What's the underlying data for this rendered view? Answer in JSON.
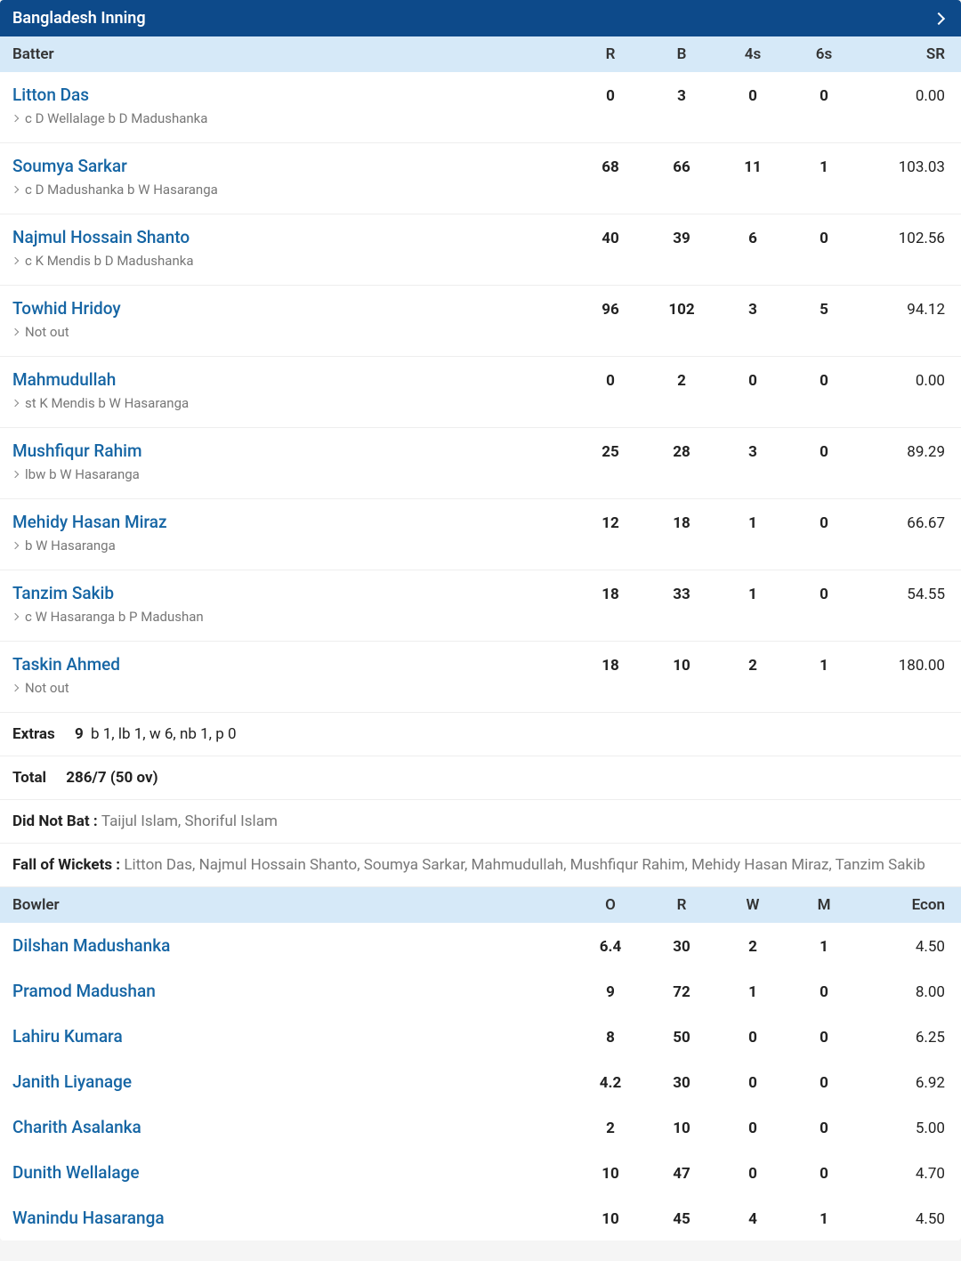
{
  "inning_title": "Bangladesh Inning",
  "batter_header": {
    "name": "Batter",
    "r": "R",
    "b": "B",
    "fours": "4s",
    "sixes": "6s",
    "sr": "SR"
  },
  "batters": [
    {
      "name": "Litton Das",
      "dismissal": "c D Wellalage b D Madushanka",
      "r": "0",
      "b": "3",
      "fours": "0",
      "sixes": "0",
      "sr": "0.00"
    },
    {
      "name": "Soumya Sarkar",
      "dismissal": "c D Madushanka b W Hasaranga",
      "r": "68",
      "b": "66",
      "fours": "11",
      "sixes": "1",
      "sr": "103.03"
    },
    {
      "name": "Najmul Hossain Shanto",
      "dismissal": "c K Mendis b D Madushanka",
      "r": "40",
      "b": "39",
      "fours": "6",
      "sixes": "0",
      "sr": "102.56"
    },
    {
      "name": "Towhid Hridoy",
      "dismissal": "Not out",
      "r": "96",
      "b": "102",
      "fours": "3",
      "sixes": "5",
      "sr": "94.12"
    },
    {
      "name": "Mahmudullah",
      "dismissal": "st K Mendis b W Hasaranga",
      "r": "0",
      "b": "2",
      "fours": "0",
      "sixes": "0",
      "sr": "0.00"
    },
    {
      "name": "Mushfiqur Rahim",
      "dismissal": "lbw b W Hasaranga",
      "r": "25",
      "b": "28",
      "fours": "3",
      "sixes": "0",
      "sr": "89.29"
    },
    {
      "name": "Mehidy Hasan Miraz",
      "dismissal": "b W Hasaranga",
      "r": "12",
      "b": "18",
      "fours": "1",
      "sixes": "0",
      "sr": "66.67"
    },
    {
      "name": "Tanzim Sakib",
      "dismissal": "c W Hasaranga b P Madushan",
      "r": "18",
      "b": "33",
      "fours": "1",
      "sixes": "0",
      "sr": "54.55"
    },
    {
      "name": "Taskin Ahmed",
      "dismissal": "Not out",
      "r": "18",
      "b": "10",
      "fours": "2",
      "sixes": "1",
      "sr": "180.00"
    }
  ],
  "extras": {
    "label": "Extras",
    "value": "9",
    "detail": "b 1, lb 1, w 6, nb 1, p 0"
  },
  "total": {
    "label": "Total",
    "value": "286/7 (50 ov)"
  },
  "dnb": {
    "label": "Did Not Bat : ",
    "value": "Taijul Islam, Shoriful Islam"
  },
  "fow": {
    "label": "Fall of Wickets : ",
    "value": "Litton Das, Najmul Hossain Shanto, Soumya Sarkar, Mahmudullah, Mushfiqur Rahim, Mehidy Hasan Miraz, Tanzim Sakib"
  },
  "bowler_header": {
    "name": "Bowler",
    "o": "O",
    "r": "R",
    "w": "W",
    "m": "M",
    "econ": "Econ"
  },
  "bowlers": [
    {
      "name": "Dilshan Madushanka",
      "o": "6.4",
      "r": "30",
      "w": "2",
      "m": "1",
      "econ": "4.50"
    },
    {
      "name": "Pramod Madushan",
      "o": "9",
      "r": "72",
      "w": "1",
      "m": "0",
      "econ": "8.00"
    },
    {
      "name": "Lahiru Kumara",
      "o": "8",
      "r": "50",
      "w": "0",
      "m": "0",
      "econ": "6.25"
    },
    {
      "name": "Janith Liyanage",
      "o": "4.2",
      "r": "30",
      "w": "0",
      "m": "0",
      "econ": "6.92"
    },
    {
      "name": "Charith Asalanka",
      "o": "2",
      "r": "10",
      "w": "0",
      "m": "0",
      "econ": "5.00"
    },
    {
      "name": "Dunith Wellalage",
      "o": "10",
      "r": "47",
      "w": "0",
      "m": "0",
      "econ": "4.70"
    },
    {
      "name": "Wanindu Hasaranga",
      "o": "10",
      "r": "45",
      "w": "4",
      "m": "1",
      "econ": "4.50"
    }
  ]
}
